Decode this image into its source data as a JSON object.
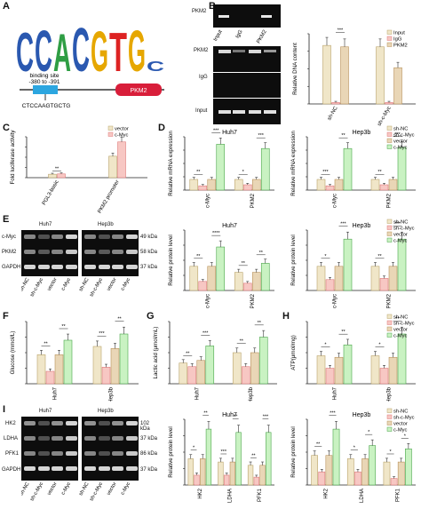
{
  "figure_labels": [
    "A",
    "B",
    "C",
    "D",
    "E",
    "F",
    "G",
    "H",
    "I"
  ],
  "panelA": {
    "motif_letters": [
      "C",
      "C",
      "A",
      "C",
      "G",
      "T",
      "G",
      "C"
    ],
    "motif_colors": [
      "#2a58b0",
      "#2a58b0",
      "#2f9e44",
      "#2a58b0",
      "#e6a700",
      "#d22",
      "#e6a700",
      "#2a58b0"
    ],
    "binding_site_title": "binding site",
    "binding_site_range": "-380 to -391",
    "sequence": "CTCCAAGTGCTG",
    "gene": "PKM2"
  },
  "panelB": {
    "gel_top_label": "PKM2",
    "top_lanes": [
      "Input",
      "IgG",
      "PKM2"
    ],
    "row_labels": [
      "PKM2",
      "IgG",
      "Input"
    ],
    "bottom_lanes": [
      "sh-NC",
      "sh-c-Myc",
      "sh-NC",
      "sh-c-Myc"
    ],
    "ylabel": "Relative DNA content",
    "legend": [
      "Input",
      "IgG",
      "PKM2"
    ],
    "sig": [
      "***"
    ]
  },
  "panelC": {
    "ylabel": "Fold luciferase activity",
    "legend": [
      "vector",
      "c-Myc"
    ],
    "sig": [
      "**"
    ]
  },
  "panelD": {
    "titles": [
      "Huh7",
      "Hep3b"
    ],
    "ylabel": "Relative mRNA expression",
    "legend": [
      "sh-NC",
      "sh-c-Myc",
      "vector",
      "c-Myc"
    ],
    "sig": [
      "**",
      "***",
      "*",
      "***",
      "***",
      "**",
      "**",
      "***"
    ]
  },
  "panelE": {
    "titles": [
      "Huh7",
      "Hep3b"
    ],
    "blot_rows": [
      "c-Myc",
      "PKM2",
      "GAPDH"
    ],
    "kda": [
      "49 kDa",
      "58 kDa",
      "37 kDa"
    ],
    "lanes": [
      "sh-NC",
      "sh-c-Myc",
      "vector",
      "c-Myc",
      "sh-NC",
      "sh-c-Myc",
      "vector",
      "c-Myc"
    ],
    "ylabel": "Relative protein level",
    "legend": [
      "sh-NC",
      "sh-c-Myc",
      "vector",
      "c-Myc"
    ],
    "sig": [
      "**",
      "****",
      "**",
      "**",
      "*",
      "***",
      "**",
      "***"
    ]
  },
  "panelF": {
    "ylabel": "Glucose (mmol/L)",
    "sig": [
      "**",
      "**",
      "***",
      "**"
    ]
  },
  "panelG": {
    "ylabel": "Lactic acid (μmol/mL)",
    "sig": [
      "**",
      "***",
      "**",
      "**"
    ]
  },
  "panelH": {
    "ylabel": "ATP(μmol/mg)",
    "legend": [
      "sh-NC",
      "sh-c-Myc",
      "vector",
      "c-Myc"
    ],
    "sig": [
      "*",
      "**",
      "*",
      "**"
    ]
  },
  "panelI": {
    "titles": [
      "Huh7",
      "Hep3b"
    ],
    "blot_rows": [
      "HK2",
      "LDHA",
      "PFK1",
      "GAPDH"
    ],
    "kda": [
      "102 kDa",
      "37 kDa",
      "86 kDa",
      "37 kDa"
    ],
    "lanes": [
      "sh-NC",
      "sh-c-Myc",
      "vector",
      "c-Myc",
      "sh-NC",
      "sh-c-Myc",
      "vector",
      "c-Myc"
    ],
    "ylabel": "Relative protein level",
    "legend": [
      "sh-NC",
      "sh-c-Myc",
      "vector",
      "c-Myc"
    ],
    "sig": [
      "*",
      "**",
      "***",
      "**",
      "**",
      "***",
      "**",
      "***",
      "*",
      "*",
      "*",
      "*"
    ]
  },
  "colors": {
    "c1": "#f0e6c8",
    "c2": "#f7c7c3",
    "c3": "#e9d6b6",
    "c4": "#c9f2c2",
    "c4border": "#4aa54a",
    "c2border": "#e07b7b",
    "c1border": "#b9a36b",
    "c3border": "#b8915a"
  },
  "chart_data": [
    {
      "type": "bar",
      "panel": "B",
      "categories": [
        "sh-NC",
        "sh-c-Myc"
      ],
      "series": [
        {
          "name": "Input",
          "values": [
            42,
            41
          ]
        },
        {
          "name": "IgG",
          "values": [
            1,
            1
          ]
        },
        {
          "name": "PKM2",
          "values": [
            41,
            26
          ]
        }
      ],
      "ylabel": "Relative DNA content"
    },
    {
      "type": "bar",
      "panel": "C",
      "categories": [
        "PGL3-basic",
        "PKM2 promoter"
      ],
      "series": [
        {
          "name": "vector",
          "values": [
            1,
            6.3
          ]
        },
        {
          "name": "c-Myc",
          "values": [
            1.1,
            10.5
          ]
        }
      ],
      "ylabel": "Fold luciferase activity",
      "ylim": [
        0,
        12
      ]
    },
    {
      "type": "bar",
      "panel": "D-Huh7",
      "categories": [
        "c-Myc",
        "PKM2"
      ],
      "series": [
        {
          "name": "sh-NC",
          "values": [
            1,
            1
          ]
        },
        {
          "name": "sh-c-Myc",
          "values": [
            0.4,
            0.5
          ]
        },
        {
          "name": "vector",
          "values": [
            1,
            1
          ]
        },
        {
          "name": "c-Myc",
          "values": [
            4.3,
            3.9
          ]
        }
      ],
      "ylabel": "Relative mRNA expression",
      "ylim": [
        0,
        5
      ]
    },
    {
      "type": "bar",
      "panel": "D-Hep3b",
      "categories": [
        "c-Myc",
        "PKM2"
      ],
      "series": [
        {
          "name": "sh-NC",
          "values": [
            1,
            1
          ]
        },
        {
          "name": "sh-c-Myc",
          "values": [
            0.4,
            0.5
          ]
        },
        {
          "name": "vector",
          "values": [
            1,
            1
          ]
        },
        {
          "name": "c-Myc",
          "values": [
            3.9,
            4.0
          ]
        }
      ],
      "ylabel": "Relative mRNA expression",
      "ylim": [
        0,
        5
      ]
    },
    {
      "type": "bar",
      "panel": "E-Huh7",
      "categories": [
        "c-Myc",
        "PKM2"
      ],
      "series": [
        {
          "name": "sh-NC",
          "values": [
            0.4,
            0.3
          ]
        },
        {
          "name": "sh-c-Myc",
          "values": [
            0.15,
            0.12
          ]
        },
        {
          "name": "vector",
          "values": [
            0.4,
            0.3
          ]
        },
        {
          "name": "c-Myc",
          "values": [
            0.72,
            0.45
          ]
        }
      ],
      "ylabel": "Relative protein level",
      "ylim": [
        0,
        1.0
      ]
    },
    {
      "type": "bar",
      "panel": "E-Hep3b",
      "categories": [
        "c-Myc",
        "PKM2"
      ],
      "series": [
        {
          "name": "sh-NC",
          "values": [
            0.4,
            0.4
          ]
        },
        {
          "name": "sh-c-Myc",
          "values": [
            0.18,
            0.2
          ]
        },
        {
          "name": "vector",
          "values": [
            0.4,
            0.4
          ]
        },
        {
          "name": "c-Myc",
          "values": [
            0.85,
            0.85
          ]
        }
      ],
      "ylabel": "Relative protein level",
      "ylim": [
        0,
        1.0
      ]
    },
    {
      "type": "bar",
      "panel": "F",
      "categories": [
        "Huh7",
        "Hep3b"
      ],
      "series": [
        {
          "name": "sh-NC",
          "values": [
            14,
            18
          ]
        },
        {
          "name": "sh-c-Myc",
          "values": [
            6,
            8
          ]
        },
        {
          "name": "vector",
          "values": [
            14,
            17
          ]
        },
        {
          "name": "c-Myc",
          "values": [
            21,
            24
          ]
        }
      ],
      "ylabel": "Glucose (mmol/L)",
      "ylim": [
        0,
        30
      ]
    },
    {
      "type": "bar",
      "panel": "G",
      "categories": [
        "Huh7",
        "Hep3b"
      ],
      "series": [
        {
          "name": "sh-NC",
          "values": [
            40,
            60
          ]
        },
        {
          "name": "sh-c-Myc",
          "values": [
            33,
            33
          ]
        },
        {
          "name": "vector",
          "values": [
            45,
            60
          ]
        },
        {
          "name": "c-Myc",
          "values": [
            73,
            90
          ]
        }
      ],
      "ylabel": "Lactic acid (μmol/mL)",
      "ylim": [
        0,
        120
      ]
    },
    {
      "type": "bar",
      "panel": "H",
      "categories": [
        "Huh7",
        "Hep3b"
      ],
      "series": [
        {
          "name": "sh-NC",
          "values": [
            0.9,
            0.9
          ]
        },
        {
          "name": "sh-c-Myc",
          "values": [
            0.5,
            0.5
          ]
        },
        {
          "name": "vector",
          "values": [
            0.85,
            0.85
          ]
        },
        {
          "name": "c-Myc",
          "values": [
            1.25,
            1.6
          ]
        }
      ],
      "ylabel": "ATP(μmol/mg)",
      "ylim": [
        0,
        2.0
      ]
    },
    {
      "type": "bar",
      "panel": "I-Huh7",
      "categories": [
        "HK2",
        "LDHA",
        "PFK1"
      ],
      "series": [
        {
          "name": "sh-NC",
          "values": [
            0.4,
            0.35,
            0.3
          ]
        },
        {
          "name": "sh-c-Myc",
          "values": [
            0.15,
            0.15,
            0.12
          ]
        },
        {
          "name": "vector",
          "values": [
            0.4,
            0.35,
            0.3
          ]
        },
        {
          "name": "c-Myc",
          "values": [
            0.85,
            0.8,
            0.8
          ]
        }
      ],
      "ylabel": "Relative protein level",
      "ylim": [
        0,
        1.0
      ]
    },
    {
      "type": "bar",
      "panel": "I-Hep3b",
      "categories": [
        "HK2",
        "LDHA",
        "PFK1"
      ],
      "series": [
        {
          "name": "sh-NC",
          "values": [
            0.45,
            0.4,
            0.35
          ]
        },
        {
          "name": "sh-c-Myc",
          "values": [
            0.2,
            0.2,
            0.1
          ]
        },
        {
          "name": "vector",
          "values": [
            0.45,
            0.4,
            0.35
          ]
        },
        {
          "name": "c-Myc",
          "values": [
            0.85,
            0.6,
            0.55
          ]
        }
      ],
      "ylabel": "Relative protein level",
      "ylim": [
        0,
        1.0
      ]
    }
  ]
}
